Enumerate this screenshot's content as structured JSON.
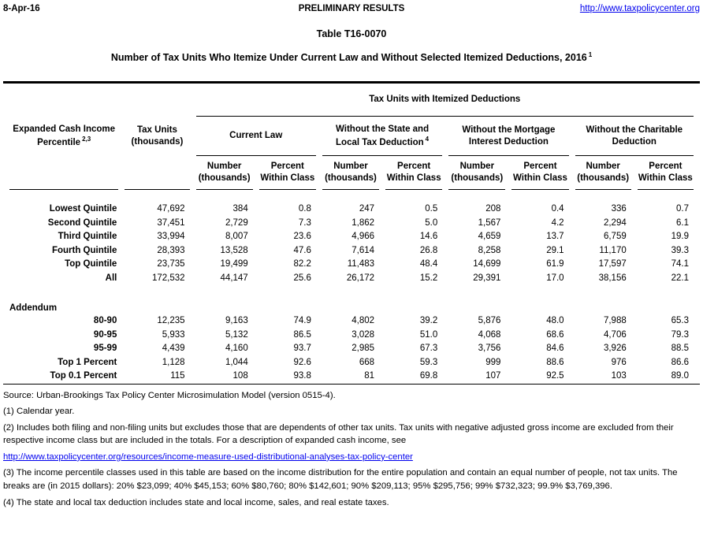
{
  "page_header": {
    "date": "8-Apr-16",
    "status_label": "PRELIMINARY RESULTS",
    "site_link": "http://www.taxpolicycenter.org"
  },
  "title": "Table T16-0070",
  "subtitle": {
    "text": "Number of Tax Units Who Itemize Under Current Law and Without Selected Itemized Deductions, 2016",
    "superscript": "1"
  },
  "table": {
    "span_header": "Tax Units with Itemized Deductions",
    "stub_header": {
      "line1": "Expanded Cash Income",
      "line2": "Percentile",
      "superscript": "2,3"
    },
    "tax_units_header": {
      "line1": "Tax Units",
      "line2": "(thousands)"
    },
    "groups": [
      {
        "line1": "Current Law",
        "line2": "",
        "superscript": ""
      },
      {
        "line1": "Without the State and",
        "line2": "Local Tax Deduction",
        "superscript": "4"
      },
      {
        "line1": "Without the Mortgage",
        "line2": "Interest Deduction",
        "superscript": ""
      },
      {
        "line1": "Without the Charitable",
        "line2": "Deduction",
        "superscript": ""
      }
    ],
    "subcols": {
      "number": {
        "line1": "Number",
        "line2": "(thousands)"
      },
      "percent": {
        "line1": "Percent",
        "line2": "Within Class"
      }
    },
    "rows": [
      {
        "label": "Lowest Quintile",
        "values": [
          "47,692",
          "384",
          "0.8",
          "247",
          "0.5",
          "208",
          "0.4",
          "336",
          "0.7"
        ]
      },
      {
        "label": "Second Quintile",
        "values": [
          "37,451",
          "2,729",
          "7.3",
          "1,862",
          "5.0",
          "1,567",
          "4.2",
          "2,294",
          "6.1"
        ]
      },
      {
        "label": "Third Quintile",
        "values": [
          "33,994",
          "8,007",
          "23.6",
          "4,966",
          "14.6",
          "4,659",
          "13.7",
          "6,759",
          "19.9"
        ]
      },
      {
        "label": "Fourth Quintile",
        "values": [
          "28,393",
          "13,528",
          "47.6",
          "7,614",
          "26.8",
          "8,258",
          "29.1",
          "11,170",
          "39.3"
        ]
      },
      {
        "label": "Top Quintile",
        "values": [
          "23,735",
          "19,499",
          "82.2",
          "11,483",
          "48.4",
          "14,699",
          "61.9",
          "17,597",
          "74.1"
        ]
      },
      {
        "label": "All",
        "values": [
          "172,532",
          "44,147",
          "25.6",
          "26,172",
          "15.2",
          "29,391",
          "17.0",
          "38,156",
          "22.1"
        ]
      }
    ],
    "addendum_label": "Addendum",
    "addendum_rows": [
      {
        "label": "80-90",
        "values": [
          "12,235",
          "9,163",
          "74.9",
          "4,802",
          "39.2",
          "5,876",
          "48.0",
          "7,988",
          "65.3"
        ]
      },
      {
        "label": "90-95",
        "values": [
          "5,933",
          "5,132",
          "86.5",
          "3,028",
          "51.0",
          "4,068",
          "68.6",
          "4,706",
          "79.3"
        ]
      },
      {
        "label": "95-99",
        "values": [
          "4,439",
          "4,160",
          "93.7",
          "2,985",
          "67.3",
          "3,756",
          "84.6",
          "3,926",
          "88.5"
        ]
      },
      {
        "label": "Top 1 Percent",
        "values": [
          "1,128",
          "1,044",
          "92.6",
          "668",
          "59.3",
          "999",
          "88.6",
          "976",
          "86.6"
        ]
      },
      {
        "label": "Top 0.1 Percent",
        "values": [
          "115",
          "108",
          "93.8",
          "81",
          "69.8",
          "107",
          "92.5",
          "103",
          "89.0"
        ]
      }
    ]
  },
  "notes": {
    "source": "Source: Urban-Brookings Tax Policy Center Microsimulation Model (version 0515-4).",
    "note1": "(1) Calendar year.",
    "note2": "(2) Includes both filing and non-filing units but excludes those that are dependents of other tax units. Tax units with negative adjusted gross income are excluded from their respective income class but are included in the totals. For a description of expanded cash income, see",
    "note2_link": "http://www.taxpolicycenter.org/resources/income-measure-used-distributional-analyses-tax-policy-center",
    "note3": "(3) The income percentile classes used in this table are based on the income distribution for the entire population and contain an equal number of people, not tax units. The breaks are (in 2015 dollars): 20% $23,099; 40% $45,153; 60% $80,760; 80% $142,601; 90% $209,113; 95% $295,756; 99% $732,323; 99.9% $3,769,396.",
    "note4": "(4) The state and local tax deduction includes state and local income, sales, and real estate taxes."
  },
  "colors": {
    "link_blue": "#0000EE",
    "text": "#000000",
    "background": "#FFFFFF",
    "rule": "#000000"
  }
}
